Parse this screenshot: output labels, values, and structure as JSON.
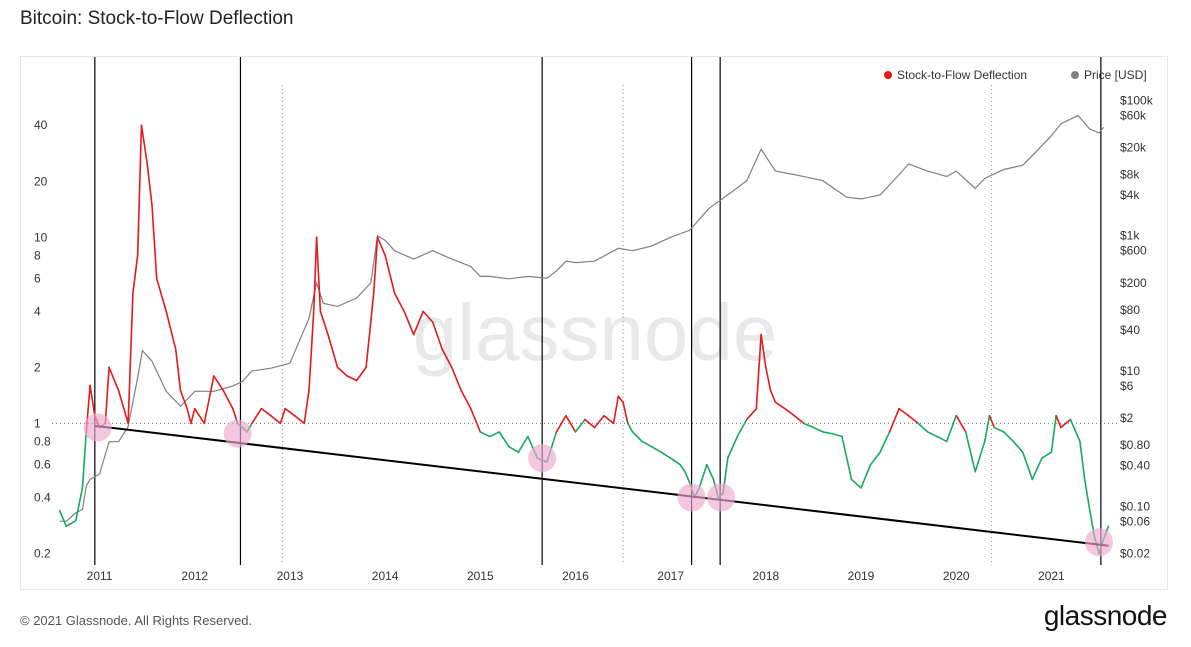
{
  "title": "Bitcoin: Stock-to-Flow Deflection",
  "footer": {
    "copyright": "© 2021 Glassnode. All Rights Reserved.",
    "logo": "glassnode"
  },
  "watermark": "glassnode",
  "colors": {
    "deflection_above": "#e41a1c",
    "deflection_below": "#18a860",
    "price": "#808080",
    "vline": "#000000",
    "marker": "#f0a8d0",
    "trend": "#000000"
  },
  "chart_data": {
    "type": "line",
    "title": "Bitcoin: Stock-to-Flow Deflection",
    "legend": [
      {
        "name": "Stock-to-Flow Deflection",
        "color": "#e41a1c"
      },
      {
        "name": "Price [USD]",
        "color": "#808080"
      }
    ],
    "x_ticks": [
      "2011",
      "2012",
      "2013",
      "2014",
      "2015",
      "2016",
      "2017",
      "2018",
      "2019",
      "2020",
      "2021"
    ],
    "y_left_ticks": [
      {
        "value": 40,
        "label": "40"
      },
      {
        "value": 20,
        "label": "20"
      },
      {
        "value": 10,
        "label": "10"
      },
      {
        "value": 8,
        "label": "8"
      },
      {
        "value": 6,
        "label": "6"
      },
      {
        "value": 4,
        "label": "4"
      },
      {
        "value": 2,
        "label": "2"
      },
      {
        "value": 1,
        "label": "1"
      },
      {
        "value": 0.8,
        "label": "0.8"
      },
      {
        "value": 0.6,
        "label": "0.6"
      },
      {
        "value": 0.4,
        "label": "0.4"
      },
      {
        "value": 0.2,
        "label": "0.2"
      }
    ],
    "y_right_ticks": [
      {
        "value": 100000,
        "label": "$100k"
      },
      {
        "value": 60000,
        "label": "$60k"
      },
      {
        "value": 20000,
        "label": "$20k"
      },
      {
        "value": 8000,
        "label": "$8k"
      },
      {
        "value": 4000,
        "label": "$4k"
      },
      {
        "value": 1000,
        "label": "$1k"
      },
      {
        "value": 600,
        "label": "$600"
      },
      {
        "value": 200,
        "label": "$200"
      },
      {
        "value": 80,
        "label": "$80"
      },
      {
        "value": 40,
        "label": "$40"
      },
      {
        "value": 10,
        "label": "$10"
      },
      {
        "value": 6,
        "label": "$6"
      },
      {
        "value": 2,
        "label": "$2"
      },
      {
        "value": 0.8,
        "label": "$0.80"
      },
      {
        "value": 0.4,
        "label": "$0.40"
      },
      {
        "value": 0.1,
        "label": "$0.10"
      },
      {
        "value": 0.06,
        "label": "$0.06"
      },
      {
        "value": 0.02,
        "label": "$0.02"
      }
    ],
    "deflection_series": [
      [
        2010.58,
        0.34
      ],
      [
        2010.65,
        0.28
      ],
      [
        2010.75,
        0.3
      ],
      [
        2010.82,
        0.45
      ],
      [
        2010.86,
        0.9
      ],
      [
        2010.9,
        1.6
      ],
      [
        2010.95,
        1.1
      ],
      [
        2011.0,
        0.95
      ],
      [
        2011.06,
        1.0
      ],
      [
        2011.1,
        2.0
      ],
      [
        2011.2,
        1.5
      ],
      [
        2011.3,
        1.0
      ],
      [
        2011.35,
        5.0
      ],
      [
        2011.4,
        8.0
      ],
      [
        2011.44,
        40.0
      ],
      [
        2011.5,
        25.0
      ],
      [
        2011.55,
        15.0
      ],
      [
        2011.6,
        6.0
      ],
      [
        2011.7,
        4.0
      ],
      [
        2011.8,
        2.5
      ],
      [
        2011.85,
        1.5
      ],
      [
        2011.92,
        1.2
      ],
      [
        2011.96,
        1.0
      ],
      [
        2012.0,
        1.2
      ],
      [
        2012.1,
        1.0
      ],
      [
        2012.2,
        1.8
      ],
      [
        2012.3,
        1.5
      ],
      [
        2012.4,
        1.2
      ],
      [
        2012.45,
        1.0
      ],
      [
        2012.5,
        0.95
      ],
      [
        2012.55,
        0.9
      ],
      [
        2012.6,
        1.0
      ],
      [
        2012.7,
        1.2
      ],
      [
        2012.8,
        1.1
      ],
      [
        2012.9,
        1.0
      ],
      [
        2012.95,
        1.2
      ],
      [
        2013.05,
        1.1
      ],
      [
        2013.15,
        1.0
      ],
      [
        2013.2,
        1.5
      ],
      [
        2013.25,
        4.0
      ],
      [
        2013.28,
        10.0
      ],
      [
        2013.32,
        4.0
      ],
      [
        2013.4,
        3.0
      ],
      [
        2013.5,
        2.0
      ],
      [
        2013.6,
        1.8
      ],
      [
        2013.7,
        1.7
      ],
      [
        2013.8,
        2.0
      ],
      [
        2013.88,
        5.0
      ],
      [
        2013.92,
        10.0
      ],
      [
        2014.0,
        8.0
      ],
      [
        2014.1,
        5.0
      ],
      [
        2014.2,
        4.0
      ],
      [
        2014.3,
        3.0
      ],
      [
        2014.4,
        4.0
      ],
      [
        2014.5,
        3.5
      ],
      [
        2014.6,
        2.5
      ],
      [
        2014.7,
        2.0
      ],
      [
        2014.8,
        1.5
      ],
      [
        2014.9,
        1.2
      ],
      [
        2015.0,
        0.9
      ],
      [
        2015.1,
        0.85
      ],
      [
        2015.2,
        0.9
      ],
      [
        2015.3,
        0.75
      ],
      [
        2015.4,
        0.7
      ],
      [
        2015.5,
        0.85
      ],
      [
        2015.6,
        0.65
      ],
      [
        2015.7,
        0.62
      ],
      [
        2015.8,
        0.9
      ],
      [
        2015.9,
        1.1
      ],
      [
        2016.0,
        0.9
      ],
      [
        2016.1,
        1.05
      ],
      [
        2016.2,
        0.95
      ],
      [
        2016.3,
        1.1
      ],
      [
        2016.4,
        1.0
      ],
      [
        2016.45,
        1.4
      ],
      [
        2016.5,
        1.3
      ],
      [
        2016.55,
        1.0
      ],
      [
        2016.6,
        0.9
      ],
      [
        2016.7,
        0.8
      ],
      [
        2016.8,
        0.75
      ],
      [
        2016.9,
        0.7
      ],
      [
        2017.0,
        0.65
      ],
      [
        2017.1,
        0.6
      ],
      [
        2017.15,
        0.55
      ],
      [
        2017.2,
        0.48
      ],
      [
        2017.25,
        0.4
      ],
      [
        2017.3,
        0.45
      ],
      [
        2017.38,
        0.6
      ],
      [
        2017.45,
        0.5
      ],
      [
        2017.5,
        0.4
      ],
      [
        2017.55,
        0.42
      ],
      [
        2017.6,
        0.65
      ],
      [
        2017.7,
        0.85
      ],
      [
        2017.8,
        1.05
      ],
      [
        2017.9,
        1.2
      ],
      [
        2017.95,
        3.0
      ],
      [
        2018.0,
        2.0
      ],
      [
        2018.05,
        1.5
      ],
      [
        2018.1,
        1.3
      ],
      [
        2018.2,
        1.2
      ],
      [
        2018.3,
        1.1
      ],
      [
        2018.4,
        1.0
      ],
      [
        2018.5,
        0.95
      ],
      [
        2018.6,
        0.9
      ],
      [
        2018.7,
        0.88
      ],
      [
        2018.8,
        0.85
      ],
      [
        2018.9,
        0.5
      ],
      [
        2019.0,
        0.45
      ],
      [
        2019.1,
        0.6
      ],
      [
        2019.2,
        0.7
      ],
      [
        2019.3,
        0.9
      ],
      [
        2019.4,
        1.2
      ],
      [
        2019.5,
        1.1
      ],
      [
        2019.6,
        1.0
      ],
      [
        2019.7,
        0.9
      ],
      [
        2019.8,
        0.85
      ],
      [
        2019.9,
        0.8
      ],
      [
        2020.0,
        1.1
      ],
      [
        2020.1,
        0.9
      ],
      [
        2020.2,
        0.55
      ],
      [
        2020.3,
        0.8
      ],
      [
        2020.35,
        1.1
      ],
      [
        2020.4,
        0.95
      ],
      [
        2020.5,
        0.9
      ],
      [
        2020.6,
        0.8
      ],
      [
        2020.7,
        0.7
      ],
      [
        2020.8,
        0.5
      ],
      [
        2020.9,
        0.65
      ],
      [
        2021.0,
        0.7
      ],
      [
        2021.05,
        1.1
      ],
      [
        2021.1,
        0.95
      ],
      [
        2021.2,
        1.05
      ],
      [
        2021.3,
        0.8
      ],
      [
        2021.35,
        0.5
      ],
      [
        2021.4,
        0.35
      ],
      [
        2021.45,
        0.25
      ],
      [
        2021.5,
        0.2
      ],
      [
        2021.55,
        0.24
      ],
      [
        2021.6,
        0.28
      ]
    ],
    "price_series": [
      [
        2010.58,
        0.06
      ],
      [
        2010.65,
        0.06
      ],
      [
        2010.75,
        0.08
      ],
      [
        2010.82,
        0.09
      ],
      [
        2010.86,
        0.2
      ],
      [
        2010.9,
        0.25
      ],
      [
        2011.0,
        0.3
      ],
      [
        2011.1,
        0.9
      ],
      [
        2011.2,
        0.9
      ],
      [
        2011.3,
        1.5
      ],
      [
        2011.4,
        8
      ],
      [
        2011.45,
        20
      ],
      [
        2011.55,
        14
      ],
      [
        2011.7,
        5
      ],
      [
        2011.85,
        3
      ],
      [
        2012.0,
        5
      ],
      [
        2012.2,
        5
      ],
      [
        2012.4,
        6
      ],
      [
        2012.5,
        7
      ],
      [
        2012.6,
        10
      ],
      [
        2012.8,
        11
      ],
      [
        2013.0,
        13
      ],
      [
        2013.2,
        60
      ],
      [
        2013.28,
        200
      ],
      [
        2013.35,
        100
      ],
      [
        2013.5,
        90
      ],
      [
        2013.7,
        120
      ],
      [
        2013.85,
        200
      ],
      [
        2013.92,
        1000
      ],
      [
        2014.0,
        850
      ],
      [
        2014.1,
        600
      ],
      [
        2014.3,
        450
      ],
      [
        2014.5,
        600
      ],
      [
        2014.7,
        450
      ],
      [
        2014.9,
        350
      ],
      [
        2015.0,
        250
      ],
      [
        2015.1,
        250
      ],
      [
        2015.3,
        230
      ],
      [
        2015.5,
        250
      ],
      [
        2015.7,
        235
      ],
      [
        2015.8,
        300
      ],
      [
        2015.9,
        420
      ],
      [
        2016.0,
        400
      ],
      [
        2016.2,
        420
      ],
      [
        2016.45,
        650
      ],
      [
        2016.6,
        600
      ],
      [
        2016.8,
        700
      ],
      [
        2017.0,
        950
      ],
      [
        2017.2,
        1200
      ],
      [
        2017.4,
        2500
      ],
      [
        2017.6,
        4000
      ],
      [
        2017.8,
        6500
      ],
      [
        2017.95,
        19000
      ],
      [
        2018.1,
        9000
      ],
      [
        2018.3,
        8000
      ],
      [
        2018.6,
        6500
      ],
      [
        2018.85,
        3700
      ],
      [
        2019.0,
        3500
      ],
      [
        2019.2,
        4000
      ],
      [
        2019.4,
        8000
      ],
      [
        2019.5,
        11500
      ],
      [
        2019.7,
        9000
      ],
      [
        2019.9,
        7500
      ],
      [
        2020.0,
        9000
      ],
      [
        2020.2,
        5000
      ],
      [
        2020.3,
        7000
      ],
      [
        2020.5,
        9500
      ],
      [
        2020.7,
        11000
      ],
      [
        2020.85,
        18000
      ],
      [
        2021.0,
        30000
      ],
      [
        2021.1,
        45000
      ],
      [
        2021.28,
        60000
      ],
      [
        2021.4,
        38000
      ],
      [
        2021.5,
        33000
      ],
      [
        2021.55,
        40000
      ]
    ],
    "vertical_lines": [
      {
        "x": 2010.95,
        "style": "solid"
      },
      {
        "x": 2012.48,
        "style": "solid"
      },
      {
        "x": 2012.92,
        "style": "dotted"
      },
      {
        "x": 2015.65,
        "style": "solid"
      },
      {
        "x": 2016.5,
        "style": "dotted"
      },
      {
        "x": 2017.22,
        "style": "solid"
      },
      {
        "x": 2017.52,
        "style": "solid"
      },
      {
        "x": 2020.37,
        "style": "dotted"
      },
      {
        "x": 2021.52,
        "style": "solid"
      }
    ],
    "markers": [
      {
        "x": 2010.98,
        "y": 0.95
      },
      {
        "x": 2012.45,
        "y": 0.88
      },
      {
        "x": 2015.65,
        "y": 0.65
      },
      {
        "x": 2017.22,
        "y": 0.4
      },
      {
        "x": 2017.53,
        "y": 0.4
      },
      {
        "x": 2021.5,
        "y": 0.23
      }
    ],
    "trendline": [
      [
        2010.95,
        0.97
      ],
      [
        2021.6,
        0.22
      ]
    ],
    "reference_line": {
      "y": 1,
      "style": "dotted"
    }
  }
}
